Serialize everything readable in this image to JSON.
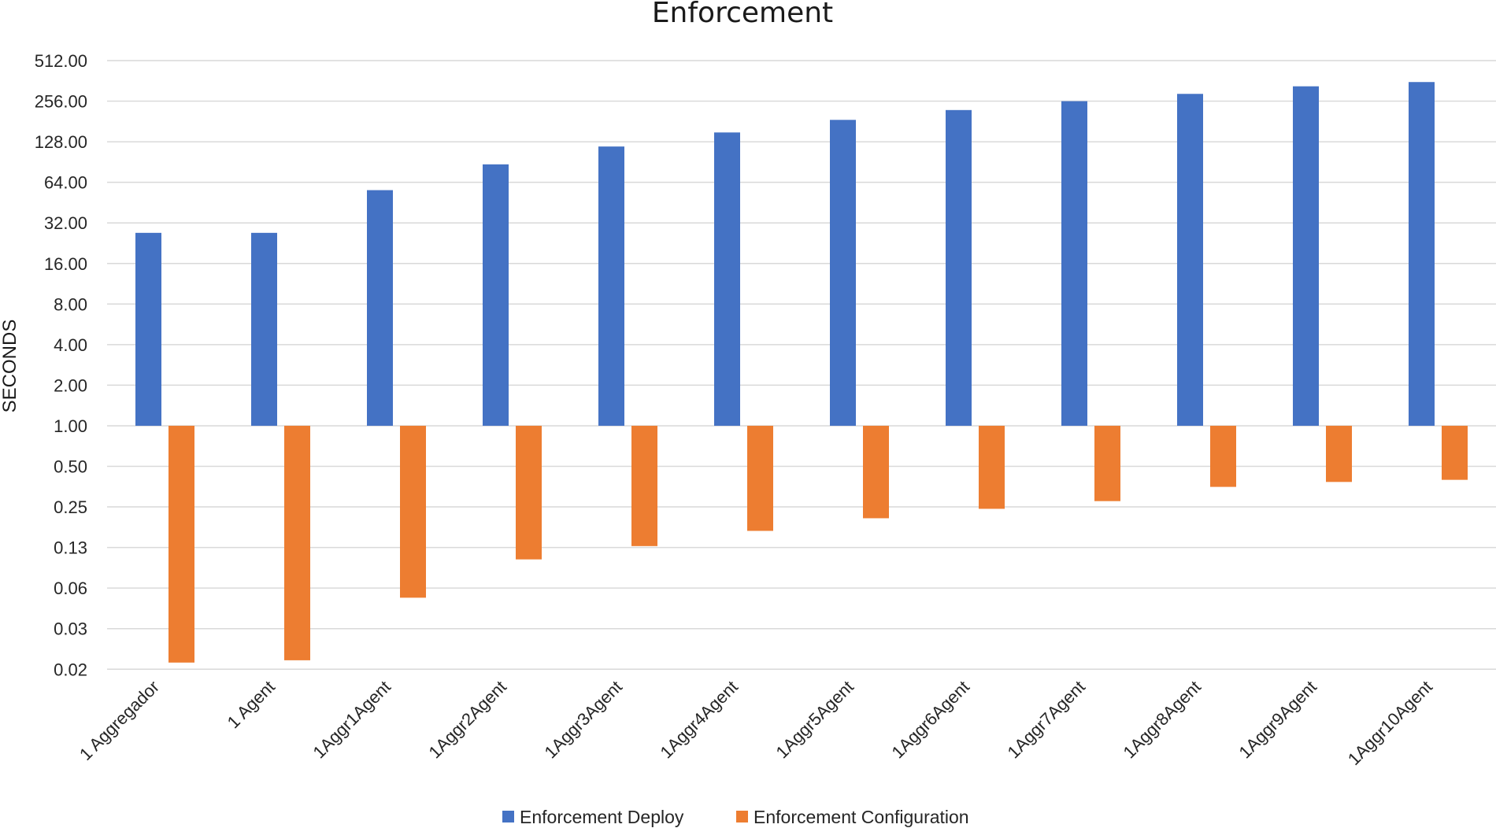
{
  "chart_data": {
    "type": "bar",
    "title": "Enforcement",
    "xlabel": "",
    "ylabel": "SECONDS",
    "scale": "log2",
    "baseline": 1,
    "ylim": [
      0.0156,
      512
    ],
    "y_ticks": [
      {
        "value": 512,
        "label": "512.00"
      },
      {
        "value": 256,
        "label": "256.00"
      },
      {
        "value": 128,
        "label": "128.00"
      },
      {
        "value": 64,
        "label": "64.00"
      },
      {
        "value": 32,
        "label": "32.00"
      },
      {
        "value": 16,
        "label": "16.00"
      },
      {
        "value": 8,
        "label": "8.00"
      },
      {
        "value": 4,
        "label": "4.00"
      },
      {
        "value": 2,
        "label": "2.00"
      },
      {
        "value": 1,
        "label": "1.00"
      },
      {
        "value": 0.5,
        "label": "0.50"
      },
      {
        "value": 0.25,
        "label": "0.25"
      },
      {
        "value": 0.125,
        "label": "0.13"
      },
      {
        "value": 0.0625,
        "label": "0.06"
      },
      {
        "value": 0.03125,
        "label": "0.03"
      },
      {
        "value": 0.015625,
        "label": "0.02"
      }
    ],
    "categories": [
      "1 Aggregador",
      "1 Agent",
      "1Aggr1Agent",
      "1Aggr2Agent",
      "1Aggr3Agent",
      "1Aggr4Agent",
      "1Aggr5Agent",
      "1Aggr6Agent",
      "1Aggr7Agent",
      "1Aggr8Agent",
      "1Aggr9Agent",
      "1Aggr10Agent"
    ],
    "series": [
      {
        "name": "Enforcement Deploy",
        "color": "#4472C4",
        "values": [
          27,
          27,
          56,
          87,
          118,
          150,
          186,
          220,
          256,
          290,
          330,
          355
        ]
      },
      {
        "name": "Enforcement Configuration",
        "color": "#ED7D31",
        "values": [
          0.0175,
          0.0182,
          0.053,
          0.102,
          0.128,
          0.166,
          0.206,
          0.242,
          0.276,
          0.352,
          0.383,
          0.397
        ]
      }
    ],
    "grid": true,
    "legend_position": "bottom"
  }
}
